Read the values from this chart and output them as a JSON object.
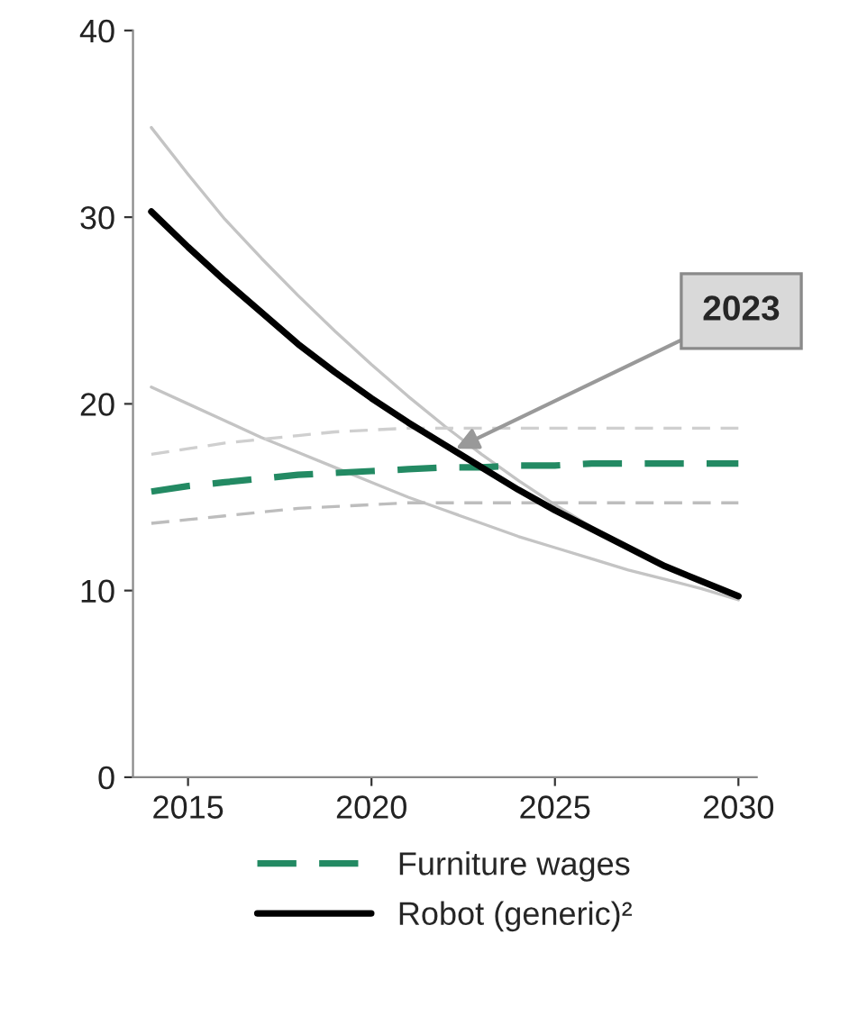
{
  "chart_data": {
    "type": "line",
    "x": [
      2014,
      2015,
      2016,
      2017,
      2018,
      2019,
      2020,
      2021,
      2022,
      2023,
      2024,
      2025,
      2026,
      2027,
      2028,
      2029,
      2030
    ],
    "series": [
      {
        "color": "#c4c4c4",
        "line_style": "solid",
        "values": [
          34.8,
          32.3,
          29.9,
          27.8,
          25.8,
          23.9,
          22.1,
          20.4,
          18.8,
          17.3,
          15.9,
          14.6,
          13.4,
          12.3,
          11.3,
          10.4,
          9.6
        ]
      },
      {
        "color": "#c4c4c4",
        "line_style": "solid",
        "values": [
          20.9,
          20.0,
          19.1,
          18.2,
          17.4,
          16.6,
          15.8,
          15.0,
          14.3,
          13.6,
          12.9,
          12.3,
          11.7,
          11.1,
          10.6,
          10.1,
          9.5
        ]
      },
      {
        "color": "#cfcfcf",
        "line_style": "dashed",
        "values": [
          17.3,
          17.6,
          17.9,
          18.1,
          18.3,
          18.5,
          18.6,
          18.7,
          18.7,
          18.7,
          18.7,
          18.7,
          18.7,
          18.7,
          18.7,
          18.7,
          18.7
        ]
      },
      {
        "color": "#bdbdbd",
        "line_style": "dashed",
        "values": [
          13.6,
          13.8,
          14.0,
          14.2,
          14.4,
          14.5,
          14.6,
          14.7,
          14.7,
          14.7,
          14.7,
          14.7,
          14.7,
          14.7,
          14.7,
          14.7,
          14.7
        ]
      },
      {
        "name": "Furniture wages",
        "color": "#238a63",
        "line_style": "dashed",
        "values": [
          15.3,
          15.6,
          15.8,
          16.0,
          16.2,
          16.3,
          16.4,
          16.5,
          16.6,
          16.6,
          16.7,
          16.7,
          16.8,
          16.8,
          16.8,
          16.8,
          16.8
        ]
      },
      {
        "name": "Robot (generic)²",
        "color": "#000000",
        "line_style": "solid",
        "values": [
          30.3,
          28.4,
          26.6,
          24.9,
          23.2,
          21.7,
          20.3,
          19.0,
          17.8,
          16.6,
          15.4,
          14.3,
          13.3,
          12.3,
          11.3,
          10.5,
          9.7
        ]
      }
    ],
    "xlim": [
      2013.5,
      2030.5
    ],
    "xticks": [
      2015,
      2020,
      2025,
      2030
    ],
    "ylim": [
      0,
      40
    ],
    "yticks": [
      0,
      10,
      20,
      30,
      40
    ],
    "annotations": [
      {
        "text": "2023",
        "x": 2022.3,
        "y": 17.6
      }
    ],
    "grid": false,
    "legend": "bottom",
    "marker": "none"
  }
}
